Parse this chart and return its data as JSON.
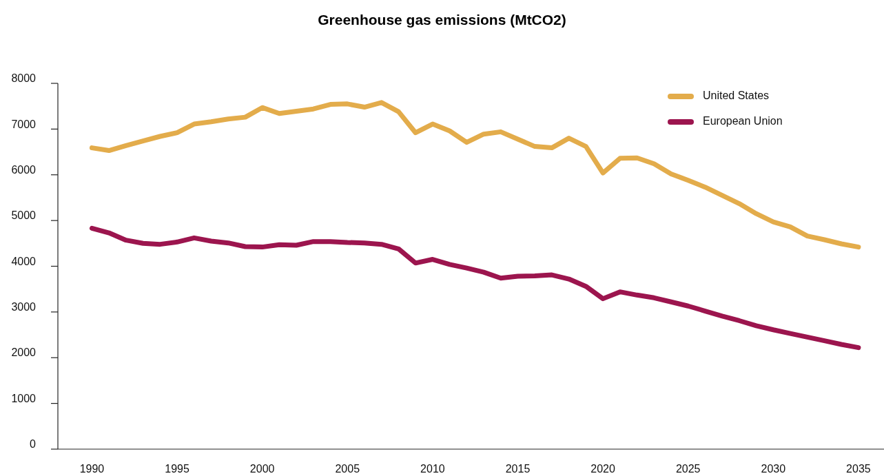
{
  "chart_data": {
    "type": "line",
    "title": "Greenhouse gas emissions (MtCO2)",
    "x": [
      1990,
      1991,
      1992,
      1993,
      1994,
      1995,
      1996,
      1997,
      1998,
      1999,
      2000,
      2001,
      2002,
      2003,
      2004,
      2005,
      2006,
      2007,
      2008,
      2009,
      2010,
      2011,
      2012,
      2013,
      2014,
      2015,
      2016,
      2017,
      2018,
      2019,
      2020,
      2021,
      2022,
      2023,
      2024,
      2025,
      2026,
      2027,
      2028,
      2029,
      2030,
      2031,
      2032,
      2033,
      2034,
      2035
    ],
    "series": [
      {
        "name": "United States",
        "color": "#e3ac4b",
        "values": [
          6590,
          6530,
          6640,
          6740,
          6840,
          6920,
          7110,
          7160,
          7220,
          7260,
          7470,
          7340,
          7390,
          7440,
          7540,
          7550,
          7480,
          7580,
          7380,
          6920,
          7110,
          6960,
          6710,
          6890,
          6940,
          6780,
          6620,
          6590,
          6800,
          6620,
          6040,
          6360,
          6370,
          6240,
          6020,
          5880,
          5730,
          5550,
          5370,
          5150,
          4970,
          4860,
          4660,
          4580,
          4490,
          4420
        ]
      },
      {
        "name": "European Union",
        "color": "#9c154e",
        "values": [
          4830,
          4730,
          4570,
          4500,
          4480,
          4530,
          4620,
          4550,
          4510,
          4430,
          4420,
          4470,
          4460,
          4540,
          4540,
          4520,
          4510,
          4480,
          4380,
          4070,
          4150,
          4040,
          3960,
          3870,
          3740,
          3780,
          3790,
          3810,
          3720,
          3560,
          3290,
          3440,
          3370,
          3310,
          3220,
          3130,
          3020,
          2910,
          2810,
          2700,
          2610,
          2530,
          2450,
          2370,
          2290,
          2220
        ]
      }
    ],
    "xlim": [
      1988,
      2036.5
    ],
    "xticks": [
      1990,
      1995,
      2000,
      2005,
      2010,
      2015,
      2020,
      2025,
      2030,
      2035
    ],
    "ylim": [
      0,
      8000
    ],
    "yticks": [
      0,
      1000,
      2000,
      3000,
      4000,
      5000,
      6000,
      7000,
      8000
    ],
    "grid": false,
    "legend": "top right",
    "line_style": "solid"
  }
}
